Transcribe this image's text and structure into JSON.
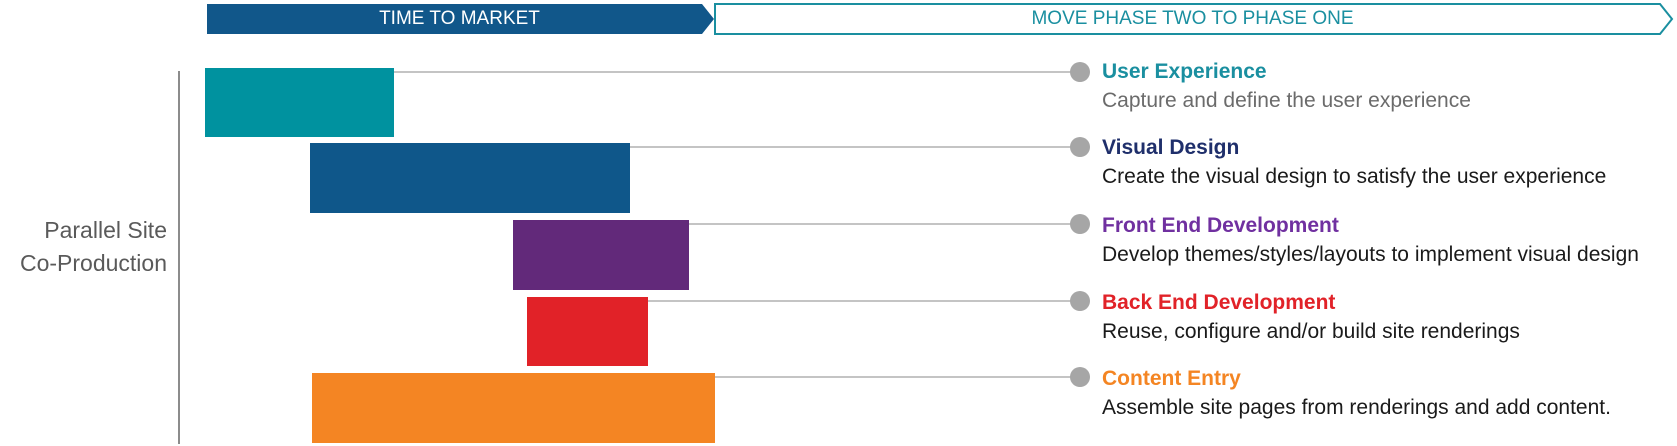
{
  "header": {
    "left_label": "TIME TO MARKET",
    "right_label": "MOVE PHASE TWO TO PHASE ONE"
  },
  "axis_label": {
    "line1": "Parallel Site",
    "line2": "Co-Production"
  },
  "colors": {
    "header_dark": "#11578a",
    "header_outline": "#1a8fa0",
    "user_experience": "#00929f",
    "visual_design": "#0f578a",
    "front_end": "#62297a",
    "back_end": "#e12228",
    "content_entry": "#f48523"
  },
  "items": [
    {
      "title": "User Experience",
      "desc": "Capture and define the user experience"
    },
    {
      "title": "Visual Design",
      "desc": "Create the visual design to satisfy the user experience"
    },
    {
      "title": "Front End Development",
      "desc": "Develop themes/styles/layouts to implement visual design"
    },
    {
      "title": "Back End Development",
      "desc": "Reuse, configure and/or build site renderings"
    },
    {
      "title": "Content Entry",
      "desc": "Assemble site pages from renderings and add content."
    }
  ]
}
